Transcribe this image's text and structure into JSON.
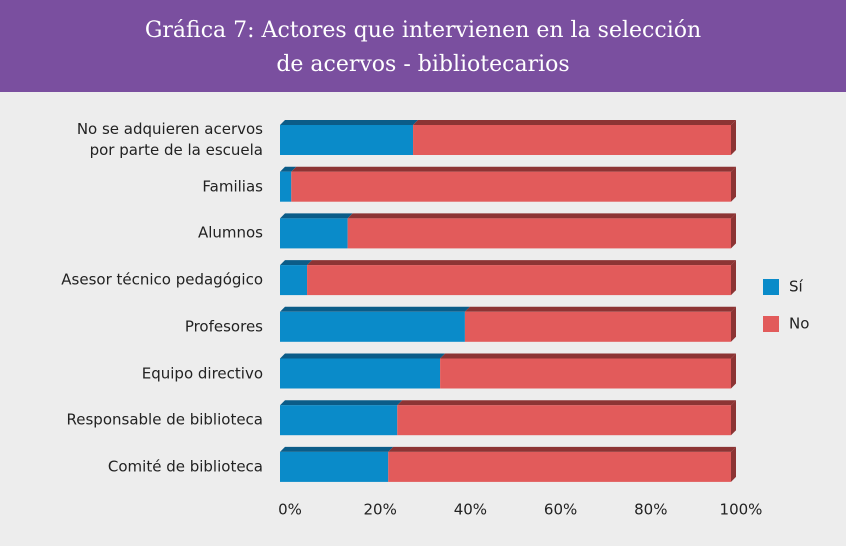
{
  "chart_data": {
    "type": "stacked_bar_horizontal",
    "title": "Gráfica 7: Actores que intervienen en la selección\nde acervos - bibliotecarios",
    "categories": [
      "No se adquieren acervos\npor parte de la escuela",
      "Familias",
      "Alumnos",
      "Asesor técnico pedagógico",
      "Profesores",
      "Equipo directivo",
      "Responsable de biblioteca",
      "Comité de biblioteca"
    ],
    "series": [
      {
        "name": "Sí",
        "color": "#0a8bc9",
        "top_color": "#0b5c88",
        "values": [
          29.5,
          2.5,
          15,
          6,
          41,
          35.5,
          26,
          24
        ]
      },
      {
        "name": "No",
        "color": "#e25b5b",
        "top_color": "#8c3434",
        "values": [
          70.5,
          97.5,
          85,
          94,
          59,
          64.5,
          74,
          76
        ]
      }
    ],
    "xlim": [
      0,
      100
    ],
    "xticks": [
      {
        "value": 0,
        "label": "0%"
      },
      {
        "value": 20,
        "label": "20%"
      },
      {
        "value": 40,
        "label": "40%"
      },
      {
        "value": 60,
        "label": "60%"
      },
      {
        "value": 80,
        "label": "80%"
      },
      {
        "value": 100,
        "label": "100%"
      }
    ],
    "legend": "right"
  }
}
